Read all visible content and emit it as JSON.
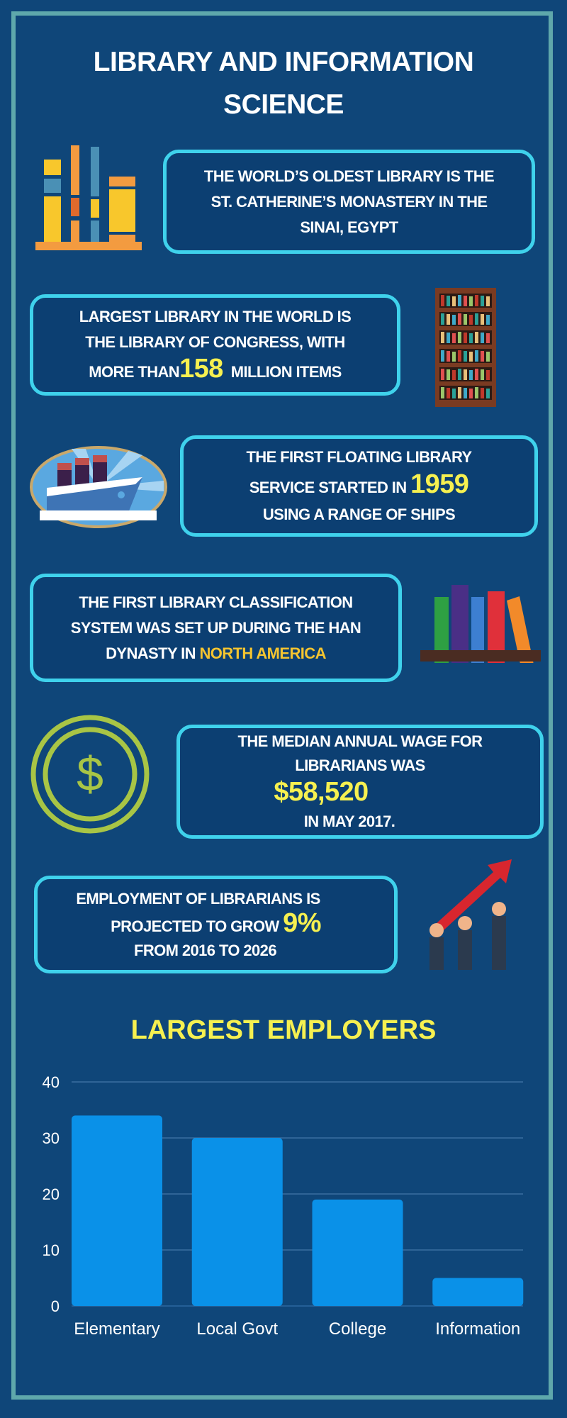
{
  "title_line1": "LIBRARY AND INFORMATION",
  "title_line2": "SCIENCE",
  "facts": [
    {
      "lines": [
        "THE WORLD’S OLDEST LIBRARY IS THE",
        "ST. CATHERINE’S MONASTERY IN THE",
        "SINAI, EGYPT"
      ],
      "icon": "books-icon"
    },
    {
      "l1": "LARGEST LIBRARY IN THE WORLD IS",
      "l2": "THE LIBRARY OF CONGRESS, WITH",
      "l3a": "MORE THAN",
      "highlight": "158",
      "l3b": "MILLION ITEMS",
      "icon": "bookshelf-icon"
    },
    {
      "l1": "THE FIRST FLOATING LIBRARY",
      "l2a": "SERVICE STARTED IN",
      "highlight": "1959",
      "l3": "USING A RANGE OF SHIPS",
      "icon": "ship-icon"
    },
    {
      "l1": "THE FIRST LIBRARY CLASSIFICATION",
      "l2": "SYSTEM WAS SET UP DURING THE HAN",
      "l3a": "DYNASTY  IN",
      "highlight": "NORTH AMERICA",
      "icon": "books-on-shelf-icon"
    },
    {
      "l1": "THE MEDIAN ANNUAL WAGE FOR",
      "l2": "LIBRARIANS WAS",
      "highlight": "$58,520",
      "l4": "IN MAY 2017.",
      "icon": "dollar-coin-icon"
    },
    {
      "l1": "EMPLOYMENT OF LIBRARIANS IS",
      "l2a": "PROJECTED TO GROW",
      "highlight": "9%",
      "l3": "FROM 2016 TO 2026",
      "icon": "growth-arrow-hands-icon"
    }
  ],
  "colors": {
    "background": "#0f4679",
    "box_border": "#3fd2ec",
    "highlight": "#f6f050",
    "bar": "#0a91e8",
    "frame": "#5fa8ab"
  },
  "chart_data": {
    "type": "bar",
    "title": "LARGEST EMPLOYERS",
    "categories": [
      "Elementary",
      "Local Govt",
      "College",
      "Information"
    ],
    "values": [
      34,
      30,
      19,
      5
    ],
    "ylim": [
      0,
      40
    ],
    "yticks": [
      0,
      10,
      20,
      30,
      40
    ],
    "grid": true
  }
}
